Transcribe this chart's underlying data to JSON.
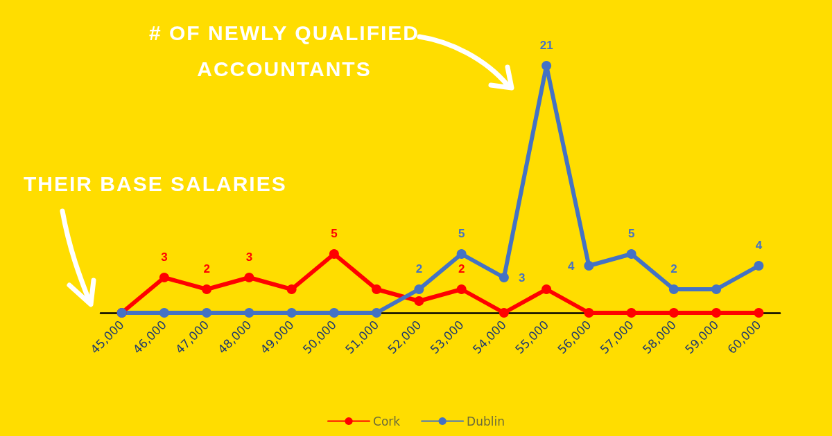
{
  "chart_data": {
    "type": "line",
    "categories": [
      "45,000",
      "46,000",
      "47,000",
      "48,000",
      "49,000",
      "50,000",
      "51,000",
      "52,000",
      "53,000",
      "54,000",
      "55,000",
      "56,000",
      "57,000",
      "58,000",
      "59,000",
      "60,000"
    ],
    "series": [
      {
        "name": "Cork",
        "color": "#ff0000",
        "values": [
          0,
          3,
          2,
          3,
          2,
          5,
          2,
          1,
          2,
          0,
          2,
          0,
          0,
          0,
          0,
          0
        ],
        "value_labels": [
          null,
          "3",
          "2",
          "3",
          null,
          "5",
          null,
          null,
          "2",
          null,
          null,
          null,
          null,
          null,
          null,
          null
        ]
      },
      {
        "name": "Dublin",
        "color": "#4472c4",
        "values": [
          0,
          0,
          0,
          0,
          0,
          0,
          0,
          2,
          5,
          3,
          21,
          4,
          5,
          2,
          2,
          4
        ],
        "value_labels": [
          null,
          null,
          null,
          null,
          null,
          null,
          null,
          "2",
          "5",
          "3",
          "21",
          "4",
          "5",
          "2",
          null,
          "4"
        ]
      }
    ],
    "annotations": [
      "# OF NEWLY QUALIFIED ACCOUNTANTS",
      "THEIR BASE SALARIES"
    ],
    "legend": "bottom",
    "marker": "circle",
    "line_style": "solid",
    "grid": false
  }
}
